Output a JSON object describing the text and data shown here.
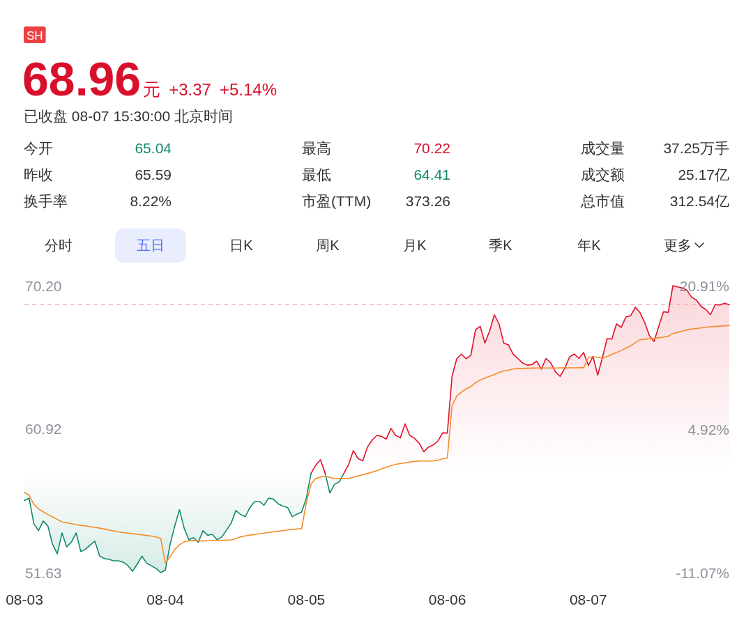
{
  "chart_data": [
    {
      "type": "other",
      "title": "68.96",
      "color": "#d9102b",
      "subtitle": "已收盘 08-07 15:30:00 北京时间",
      "annotations": [
        "SH",
        "元",
        "+3.37",
        "+5.14%",
        "今开",
        "65.04",
        "最高",
        "70.22",
        "成交量",
        "37.25万手",
        "昨收",
        "65.59",
        "最低",
        "64.41",
        "成交额",
        "25.17亿",
        "换手率",
        "8.22%",
        "市盈(TTM)",
        "373.26",
        "总市值",
        "312.54亿",
        "分时",
        "五日",
        "日K",
        "周K",
        "月K",
        "季K",
        "年K",
        "更多"
      ],
      "colors": [
        "#ec4141",
        "#d9102b",
        "#d9102b",
        "#d9102b",
        null,
        "#118a6c",
        null,
        "#d9102b",
        null,
        null,
        null,
        null,
        null,
        "#118a6c",
        null,
        null,
        null,
        null,
        null,
        null,
        null,
        null,
        null,
        "#4b6ef5",
        null,
        null,
        null,
        null,
        null,
        null
      ]
    },
    {
      "type": "line",
      "categories": [
        "08-03",
        null,
        null,
        null,
        null,
        null,
        null,
        null,
        null,
        null,
        null,
        null,
        null,
        null,
        null,
        null,
        null,
        null,
        null,
        null,
        null,
        null,
        null,
        null,
        null,
        null,
        null,
        null,
        null,
        null,
        "08-04",
        null,
        null,
        null,
        null,
        null,
        null,
        null,
        null,
        null,
        null,
        null,
        null,
        null,
        null,
        null,
        null,
        null,
        null,
        null,
        null,
        null,
        null,
        null,
        null,
        null,
        null,
        null,
        null,
        null,
        "08-05",
        null,
        null,
        null,
        null,
        null,
        null,
        null,
        null,
        null,
        null,
        null,
        null,
        null,
        null,
        null,
        null,
        null,
        null,
        null,
        null,
        null,
        null,
        null,
        null,
        null,
        null,
        null,
        null,
        null,
        "08-06",
        null,
        null,
        null,
        null,
        null,
        null,
        null,
        null,
        null,
        null,
        null,
        null,
        null,
        null,
        null,
        null,
        null,
        null,
        null,
        null,
        null,
        null,
        null,
        null,
        null,
        null,
        null,
        null,
        null,
        "08-07",
        null,
        null,
        null,
        null,
        null,
        null,
        null,
        null,
        null,
        null,
        null,
        null,
        null,
        null,
        null,
        null,
        null,
        null,
        null,
        null,
        null,
        null,
        null,
        null,
        null,
        null,
        null,
        null,
        null,
        null
      ],
      "ylim": [
        51.63,
        70.2
      ],
      "yticks": [
        51.63,
        60.92,
        {
          "value": 70.2,
          "label": "70.20"
        }
      ],
      "y2lim": [
        -11.07,
        20.91
      ],
      "y2ticks": [
        {
          "value": -11.07,
          "label": "-11.07%"
        },
        {
          "value": 4.92,
          "label": "4.92%"
        },
        {
          "value": 20.91,
          "label": "20.91%"
        }
      ],
      "ref_lines": [
        {
          "axis": "y",
          "value": 68.96,
          "color": "#f4a3a8",
          "line_style": "dashed"
        }
      ],
      "series": [
        {
          "type": "area",
          "axis": "y2",
          "color": "#118a6c",
          "values": [
            -3.03,
            -2.77,
            -5.61,
            -6.39,
            -5.32,
            -5.87,
            -7.94,
            -8.97,
            -6.65,
            -8.2,
            -7.66,
            -6.65,
            -8.72,
            -8.46,
            -8.0,
            -7.56,
            -9.23,
            -9.49,
            -9.6,
            -9.75,
            -9.75,
            -9.9,
            -10.27,
            -10.92,
            -10.14,
            -9.23,
            -10.01,
            -10.3,
            -10.6,
            -11.07,
            -10.78,
            -7.94,
            -5.87,
            -4.06,
            -6.13,
            -7.42,
            -7.17,
            -7.68,
            -6.39,
            -6.91,
            -6.8,
            -7.4,
            -7.1,
            -6.35,
            -5.55,
            -4.15,
            -4.58,
            -4.84,
            -3.81,
            -3.15,
            -3.15,
            -3.55,
            -2.77,
            -2.89,
            -3.4,
            -3.65,
            -3.81,
            -4.85,
            -4.55,
            -4.32,
            -2.77,
            0,
            null,
            null,
            0,
            -2.2,
            -1.22,
            -0.96,
            0,
            null,
            null,
            null,
            null,
            null,
            null,
            null,
            null,
            null,
            null,
            null,
            null,
            null,
            null,
            null,
            null,
            null,
            null,
            null,
            null,
            null,
            null,
            null,
            null,
            null,
            null,
            null,
            null,
            null,
            null,
            null,
            null,
            null,
            null,
            null,
            null,
            null,
            null,
            null,
            null,
            null,
            null,
            null,
            null,
            null,
            null,
            null,
            null,
            null,
            null,
            null,
            null,
            null,
            null,
            null,
            null,
            null,
            null,
            null,
            null,
            null,
            null,
            null,
            null,
            null,
            null,
            null,
            null,
            null,
            null,
            null,
            null,
            null,
            null,
            null,
            null,
            null,
            null,
            null,
            null,
            null,
            null
          ]
        },
        {
          "type": "area",
          "axis": "y2",
          "color": "#e0112b",
          "values": [
            null,
            null,
            null,
            null,
            null,
            null,
            null,
            null,
            null,
            null,
            null,
            null,
            null,
            null,
            null,
            null,
            null,
            null,
            null,
            null,
            null,
            null,
            null,
            null,
            null,
            null,
            null,
            null,
            null,
            null,
            null,
            null,
            null,
            null,
            null,
            null,
            null,
            null,
            null,
            null,
            null,
            null,
            null,
            null,
            null,
            null,
            null,
            null,
            null,
            null,
            null,
            null,
            null,
            null,
            null,
            null,
            null,
            null,
            null,
            null,
            null,
            0,
            0.9,
            1.5,
            0,
            null,
            null,
            null,
            0,
            0.98,
            2.53,
            1.64,
            1.38,
            2.93,
            3.7,
            4.22,
            4.1,
            3.82,
            4.99,
            4.22,
            3.96,
            5.51,
            4.22,
            3.9,
            3.35,
            2.41,
            2.93,
            3.15,
            3.6,
            4.5,
            4.48,
            10.8,
            12.76,
            13.28,
            12.76,
            13.14,
            16.0,
            16.38,
            14.5,
            15.86,
            17.67,
            16.64,
            14.5,
            14.31,
            13.28,
            12.8,
            12.3,
            12.05,
            12.1,
            12.5,
            11.6,
            12.8,
            12.3,
            11.3,
            10.8,
            11.7,
            12.95,
            13.3,
            12.8,
            13.45,
            12.02,
            13.02,
            10.94,
            12.88,
            15.0,
            14.95,
            16.64,
            16.26,
            17.41,
            17.55,
            18.5,
            17.9,
            16.8,
            15.35,
            14.69,
            16.4,
            18.0,
            17.93,
            20.91,
            20.77,
            20.65,
            20.4,
            19.6,
            19.3,
            18.6,
            18.25,
            17.67,
            18.8,
            18.75,
            18.95,
            18.77
          ]
        },
        {
          "type": "line",
          "axis": "y2",
          "color": "#f28c28",
          "values": [
            -2.12,
            -2.45,
            -3.45,
            -3.95,
            -4.3,
            -4.6,
            -4.86,
            -5.14,
            -5.42,
            -5.52,
            -5.62,
            -5.72,
            -5.8,
            -5.87,
            -5.95,
            -6.03,
            -6.11,
            -6.21,
            -6.32,
            -6.43,
            -6.53,
            -6.6,
            -6.66,
            -6.73,
            -6.8,
            -6.86,
            -6.93,
            -6.99,
            -7.09,
            -7.26,
            -10.01,
            -9.3,
            -8.5,
            -7.98,
            -7.64,
            -7.53,
            -7.49,
            -7.52,
            -7.55,
            -7.52,
            -7.5,
            -7.48,
            -7.47,
            -7.45,
            -7.42,
            -7.28,
            -7.08,
            -6.97,
            -6.89,
            -6.82,
            -6.74,
            -6.66,
            -6.59,
            -6.53,
            -6.46,
            -6.39,
            -6.32,
            -6.27,
            -6.21,
            -6.16,
            -3.28,
            -1.2,
            -0.58,
            -0.44,
            -0.31,
            -0.45,
            -0.61,
            -0.6,
            -0.58,
            -0.57,
            -0.43,
            -0.3,
            -0.16,
            -0.02,
            0.13,
            0.31,
            0.49,
            0.67,
            0.85,
            1.0,
            1.08,
            1.16,
            1.24,
            1.32,
            1.37,
            1.37,
            1.37,
            1.37,
            1.46,
            1.6,
            1.71,
            7.5,
            8.6,
            9.05,
            9.4,
            9.65,
            10.1,
            10.4,
            10.6,
            10.81,
            11.0,
            11.24,
            11.4,
            11.5,
            11.61,
            11.66,
            11.68,
            11.7,
            11.72,
            11.73,
            11.73,
            11.73,
            11.73,
            11.73,
            11.74,
            11.74,
            11.75,
            11.75,
            11.76,
            11.76,
            12.89,
            12.97,
            12.94,
            12.82,
            13.02,
            13.24,
            13.45,
            13.68,
            13.94,
            14.2,
            14.55,
            14.88,
            14.94,
            14.99,
            15.04,
            15.1,
            15.17,
            15.27,
            15.58,
            15.7,
            15.85,
            15.97,
            16.08,
            16.14,
            16.2,
            16.27,
            16.32,
            16.36,
            16.4,
            16.43,
            16.46
          ]
        }
      ]
    }
  ]
}
